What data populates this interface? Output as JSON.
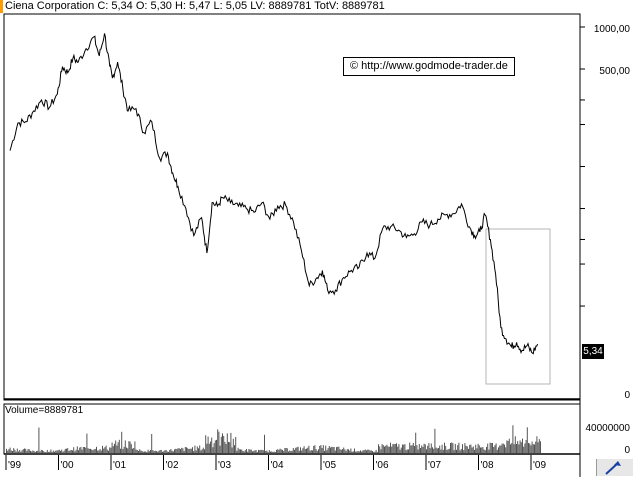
{
  "header": {
    "quote_line": "Ciena Corporation C: 5,34 O: 5,30 H: 5,47 L: 5,05 LV: 8889781 TotV: 8889781"
  },
  "watermark": "© http://www.godmode-trader.de",
  "price_panel": {
    "last_price_label": "5,34",
    "y_ticks": [
      "1000,00",
      "500,00",
      "0"
    ]
  },
  "volume_panel": {
    "label": "Volume=8889781",
    "y_ticks": [
      "40000000",
      "0"
    ]
  },
  "x_ticks": [
    "'99",
    "'00",
    "'01",
    "'02",
    "'03",
    "'04",
    "'05",
    "'06",
    "'07",
    "'08",
    "'09"
  ],
  "colors": {
    "line": "#000000",
    "volume": "#555555",
    "highlight_box": "#b4b4b4",
    "marker": "#ff9a00"
  },
  "toolbar": {
    "icon": "arrow-icon"
  },
  "chart_data": {
    "type": "line",
    "title": "Ciena Corporation",
    "y_scale": "log",
    "x_axis": "time 1999-2009",
    "series": [
      {
        "name": "Ciena Corporation",
        "x": [
          1999.0,
          1999.15,
          1999.3,
          1999.45,
          1999.6,
          1999.75,
          1999.9,
          2000.0,
          2000.1,
          2000.2,
          2000.3,
          2000.45,
          2000.6,
          2000.7,
          2000.8,
          2000.9,
          2000.95,
          2001.05,
          2001.15,
          2001.25,
          2001.4,
          2001.55,
          2001.7,
          2001.85,
          2002.0,
          2002.1,
          2002.2,
          2002.35,
          2002.5,
          2002.65,
          2002.75,
          2002.85,
          2002.95,
          2003.05,
          2003.2,
          2003.35,
          2003.5,
          2003.65,
          2003.8,
          2003.95,
          2004.1,
          2004.25,
          2004.4,
          2004.55,
          2004.7,
          2004.85,
          2004.95,
          2005.05,
          2005.2,
          2005.35,
          2005.5,
          2005.65,
          2005.8,
          2005.95,
          2006.1,
          2006.25,
          2006.4,
          2006.55,
          2006.7,
          2006.85,
          2007.0,
          2007.15,
          2007.3,
          2007.45,
          2007.6,
          2007.75,
          2007.85,
          2007.95,
          2008.05,
          2008.15,
          2008.25,
          2008.35,
          2008.45,
          2008.55,
          2008.65,
          2008.75,
          2008.85,
          2008.95,
          2009.05
        ],
        "y": [
          130,
          205,
          210,
          250,
          300,
          265,
          330,
          520,
          470,
          600,
          560,
          700,
          850,
          620,
          900,
          520,
          430,
          560,
          360,
          250,
          260,
          175,
          210,
          115,
          125,
          90,
          72,
          50,
          32,
          43,
          24,
          55,
          52,
          60,
          55,
          52,
          50,
          47,
          55,
          42,
          52,
          53,
          40,
          25,
          14,
          16,
          18,
          13,
          13,
          16,
          18,
          19,
          24,
          22,
          36,
          37,
          35,
          31,
          33,
          40,
          38,
          42,
          45,
          46,
          54,
          37,
          32,
          34,
          45,
          30,
          17,
          7,
          5.8,
          5.1,
          5.5,
          4.8,
          5.2,
          4.6,
          5.34
        ]
      }
    ],
    "volume_axis_max": 40000000
  }
}
